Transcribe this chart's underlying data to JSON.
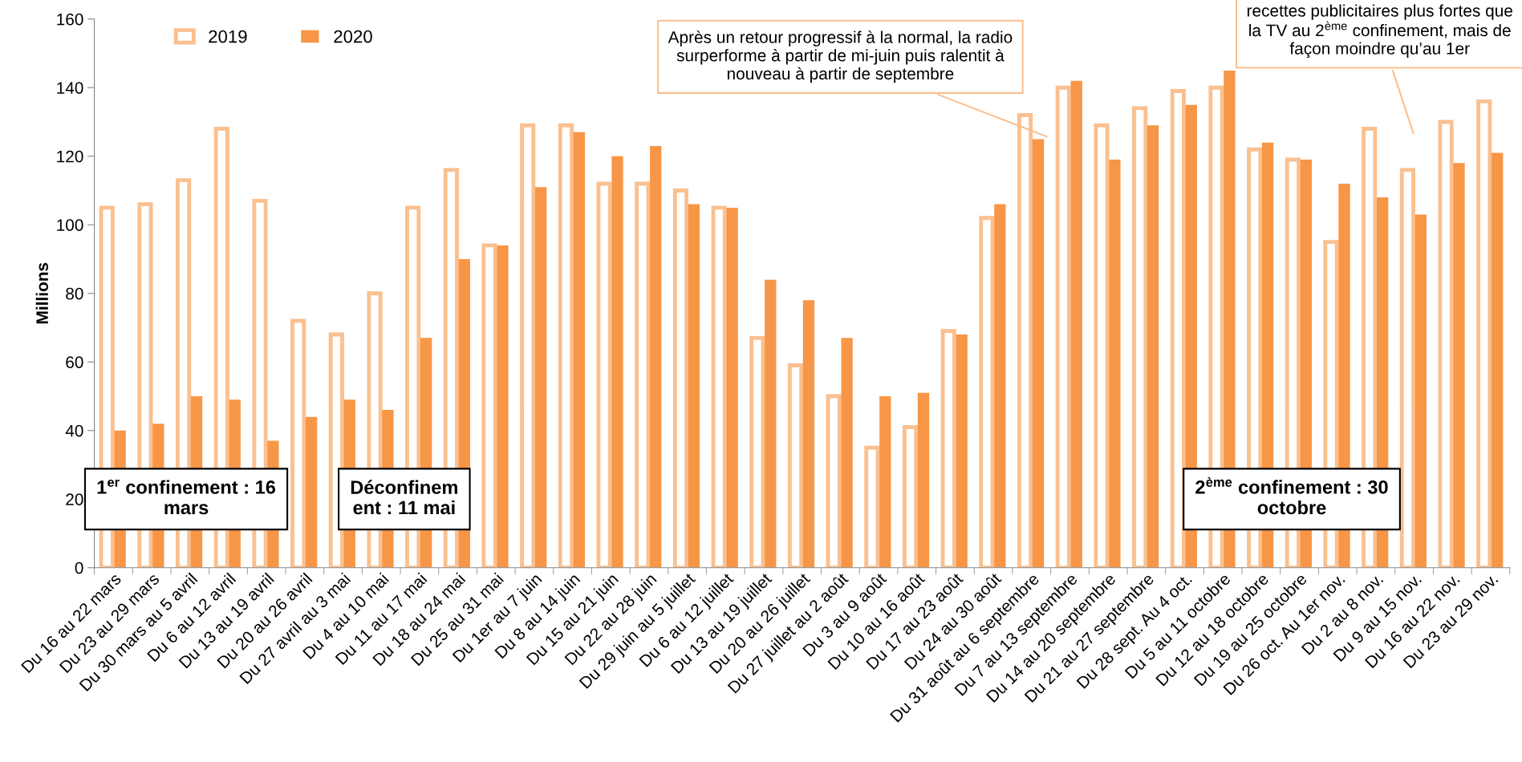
{
  "chart_data": {
    "type": "bar",
    "ylabel": "Millions",
    "categories": [
      "Du 16 au 22 mars",
      "Du 23 au 29 mars",
      "Du 30 mars au 5 avril",
      "Du 6 au 12 avril",
      "Du 13 au 19 avril",
      "Du 20 au 26 avril",
      "Du 27 avril au 3 mai",
      "Du 4 au 10 mai",
      "Du 11 au 17 mai",
      "Du 18 au 24 mai",
      "Du 25 au 31 mai",
      "Du 1er au 7 juin",
      "Du 8 au 14 juin",
      "Du 15 au 21 juin",
      "Du 22 au 28 juin",
      "Du 29 juin au 5 juillet",
      "Du 6 au 12 juillet",
      "Du 13 au 19 juillet",
      "Du 20 au 26 juillet",
      "Du 27 juillet au 2 août",
      "Du 3 au 9 août",
      "Du 10 au 16 août",
      "Du 17 au 23 août",
      "Du 24 au 30 août",
      "Du 31 août au 6 septembre",
      "Du 7 au 13 septembre",
      "Du 14 au 20 septembre",
      "Du 21 au 27 septembre",
      "Du 28 sept. Au 4 oct.",
      "Du 5 au 11 octobre",
      "Du 12 au 18 octobre",
      "Du 19 au 25 octobre",
      "Du 26 oct. Au 1er nov.",
      "Du 2 au 8 nov.",
      "Du 9 au 15 nov.",
      "Du 16 au 22 nov.",
      "Du 23 au 29 nov."
    ],
    "series": [
      {
        "name": "2019",
        "color": "#fac090",
        "values": [
          105,
          106,
          113,
          128,
          107,
          72,
          68,
          80,
          105,
          116,
          94,
          129,
          129,
          112,
          112,
          110,
          105,
          67,
          59,
          50,
          35,
          41,
          69,
          102,
          132,
          140,
          129,
          134,
          139,
          140,
          122,
          119,
          95,
          128,
          116,
          130,
          136
        ]
      },
      {
        "name": "2020",
        "color": "#f79646",
        "values": [
          40,
          42,
          50,
          49,
          37,
          44,
          49,
          46,
          67,
          90,
          94,
          111,
          127,
          120,
          123,
          106,
          105,
          84,
          78,
          67,
          50,
          51,
          68,
          106,
          125,
          142,
          119,
          129,
          135,
          145,
          124,
          119,
          112,
          108,
          103,
          118,
          121
        ]
      }
    ],
    "ylim": [
      0,
      160
    ],
    "yticks": [
      0,
      20,
      40,
      60,
      80,
      100,
      120,
      140,
      160
    ],
    "grid": false,
    "legend": "top left",
    "annotations": [
      "Après un retour progressif à la normal, la radio\nsurperforme à partir de mi-juin puis ralentit à\nnouveau à partir de septembre",
      "recettes publicitaires plus fortes que\nla TV au 2$^{ème}$ confinement, mais de\nfaçon moindre qu’au 1er",
      "1$^{er}$ confinement : 16 mars",
      "Déconfinem\nent : 11 mai",
      "2$^{ème}$ confinement : 30 octobre"
    ]
  }
}
